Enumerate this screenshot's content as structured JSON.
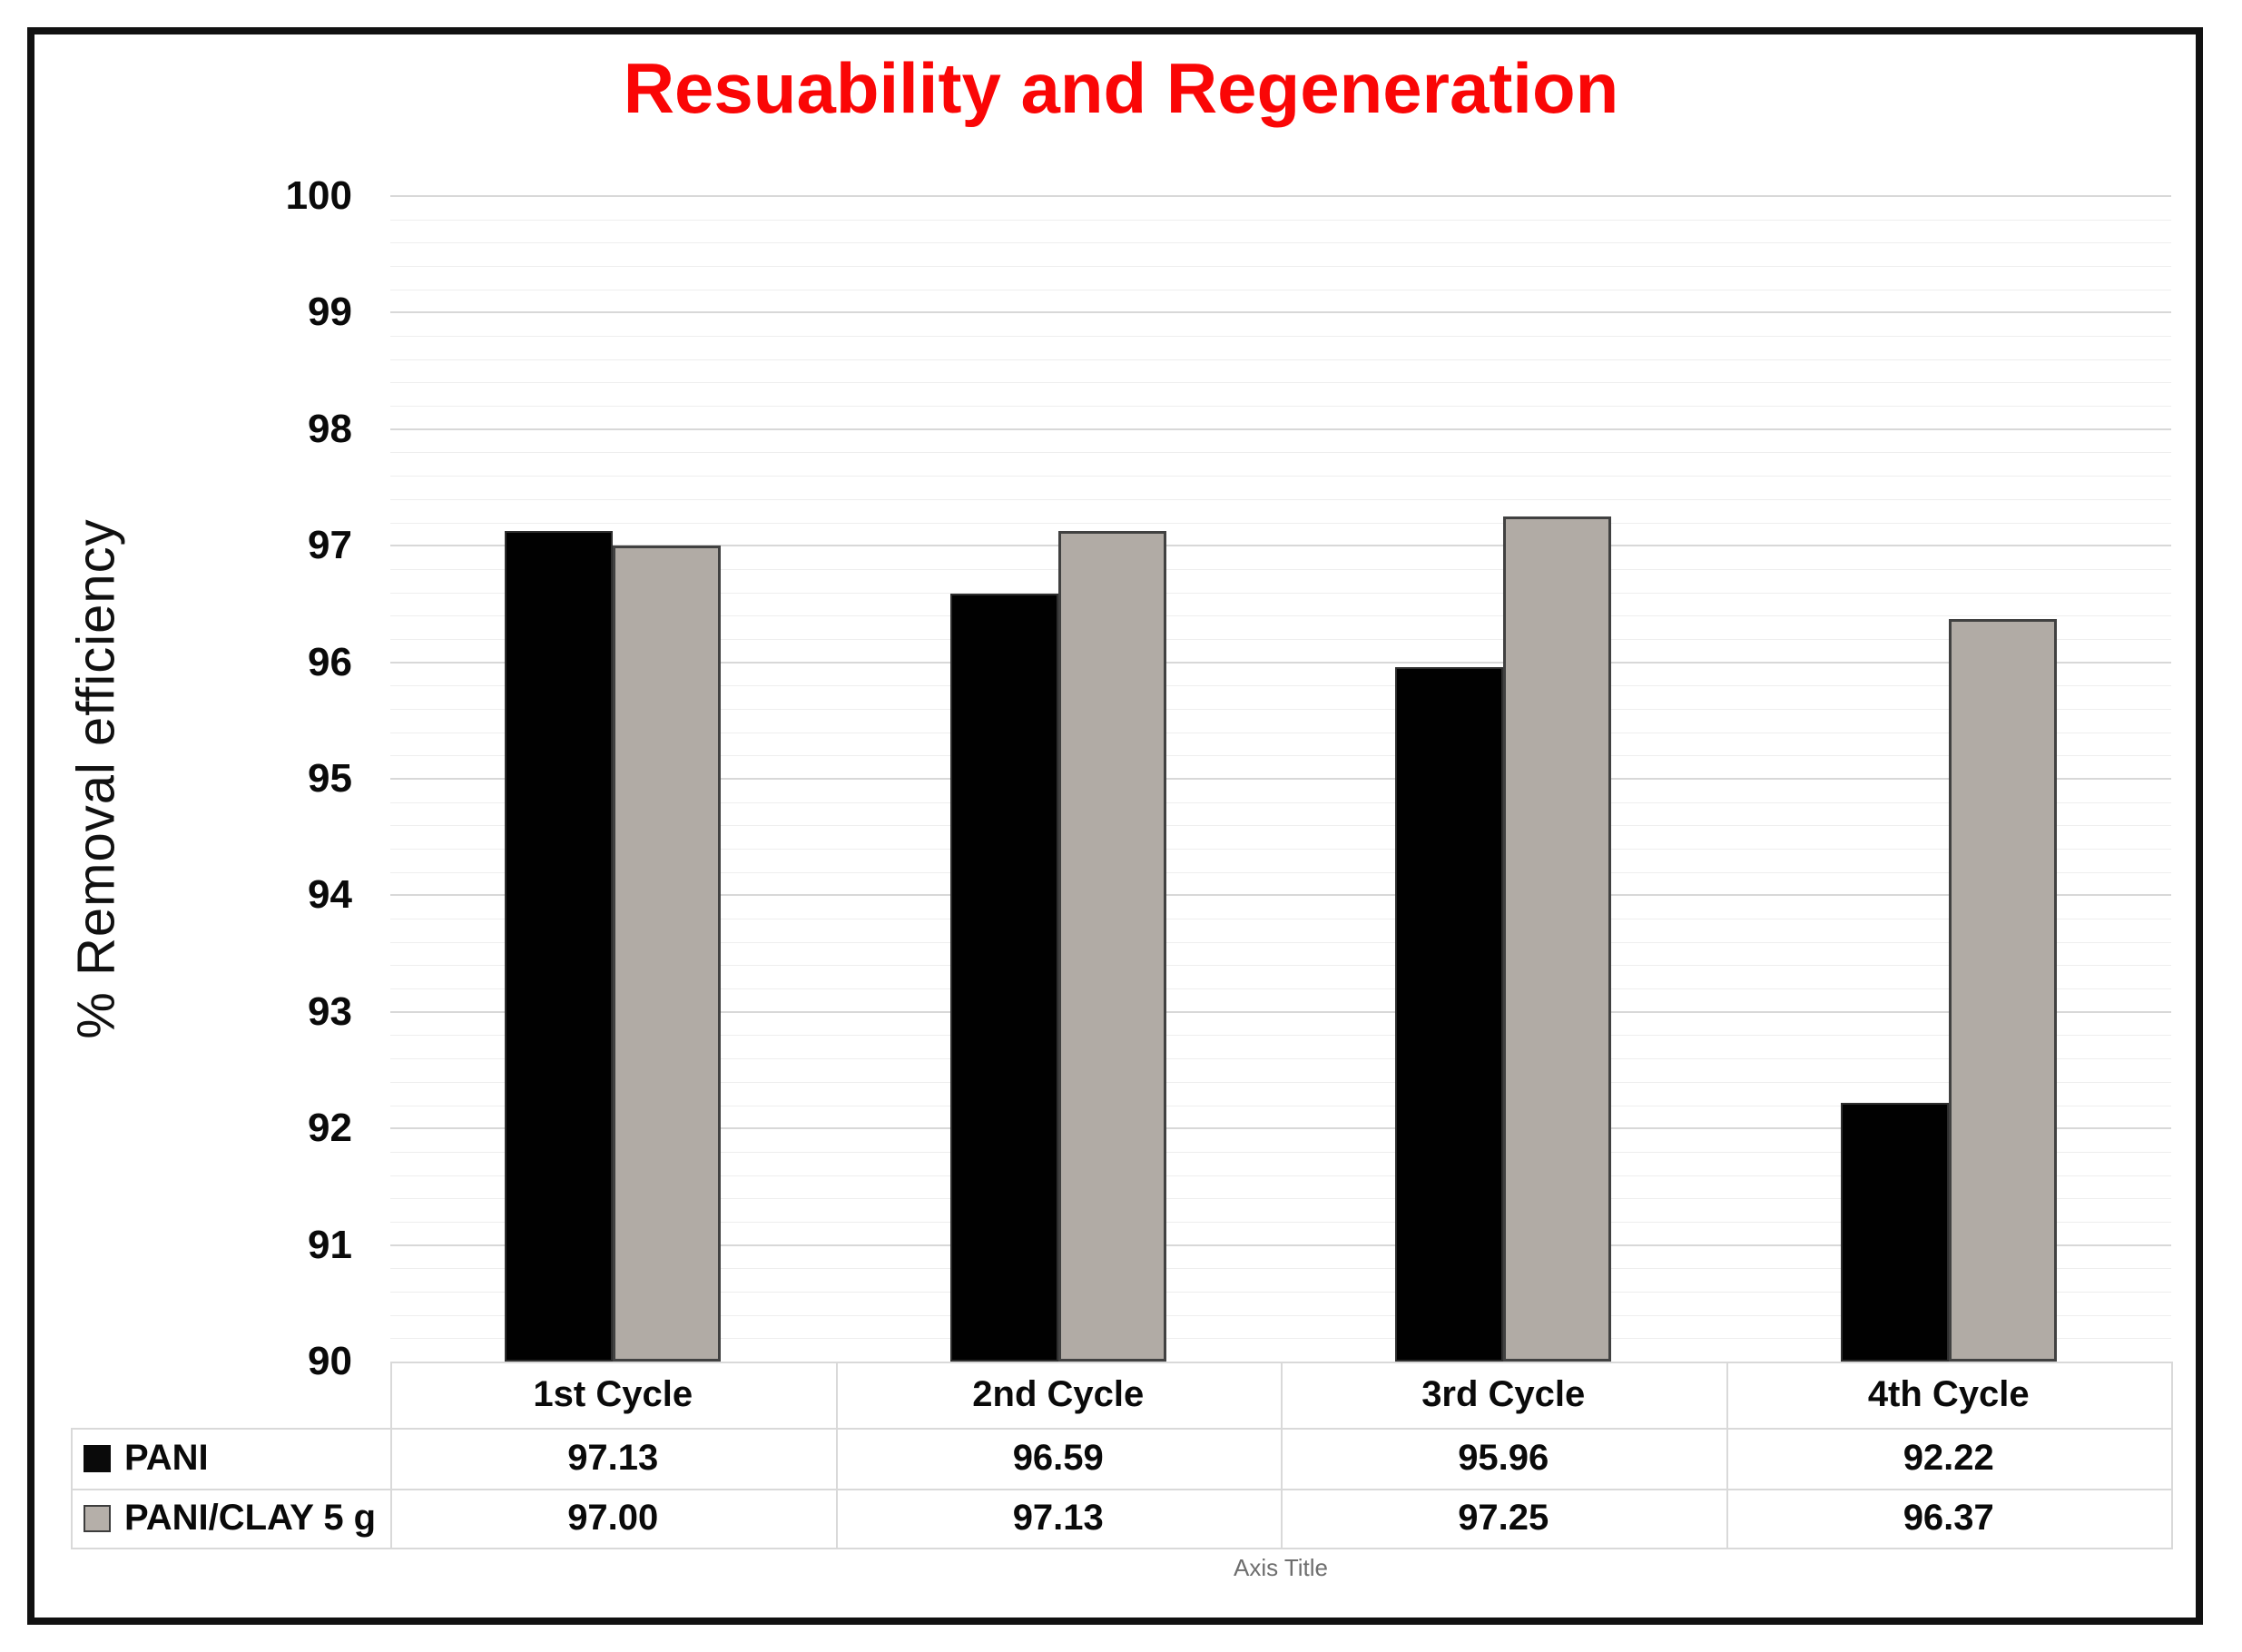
{
  "title": "Resuability and Regeneration",
  "title_color": "#fa0606",
  "axis_caption": "Axis Title",
  "chart_data": {
    "type": "bar",
    "title": "Resuability and Regeneration",
    "categories": [
      "1st Cycle",
      "2nd Cycle",
      "3rd Cycle",
      "4th Cycle"
    ],
    "series": [
      {
        "name": "PANI",
        "color": "#010101",
        "values": [
          97.13,
          96.59,
          95.96,
          92.22
        ]
      },
      {
        "name": "PANI/CLAY 5 g",
        "color": "#b1aba5",
        "values": [
          97.0,
          97.13,
          97.25,
          96.37
        ]
      }
    ],
    "ylabel": "% Removal efficiency",
    "xlabel": "Axis Title",
    "ylim": [
      90,
      100
    ],
    "ytick_interval": 1,
    "minor_gridline_interval": 0.2,
    "grid": "on",
    "legend_position": "table-left",
    "data_table": true,
    "value_format": "0.00"
  }
}
